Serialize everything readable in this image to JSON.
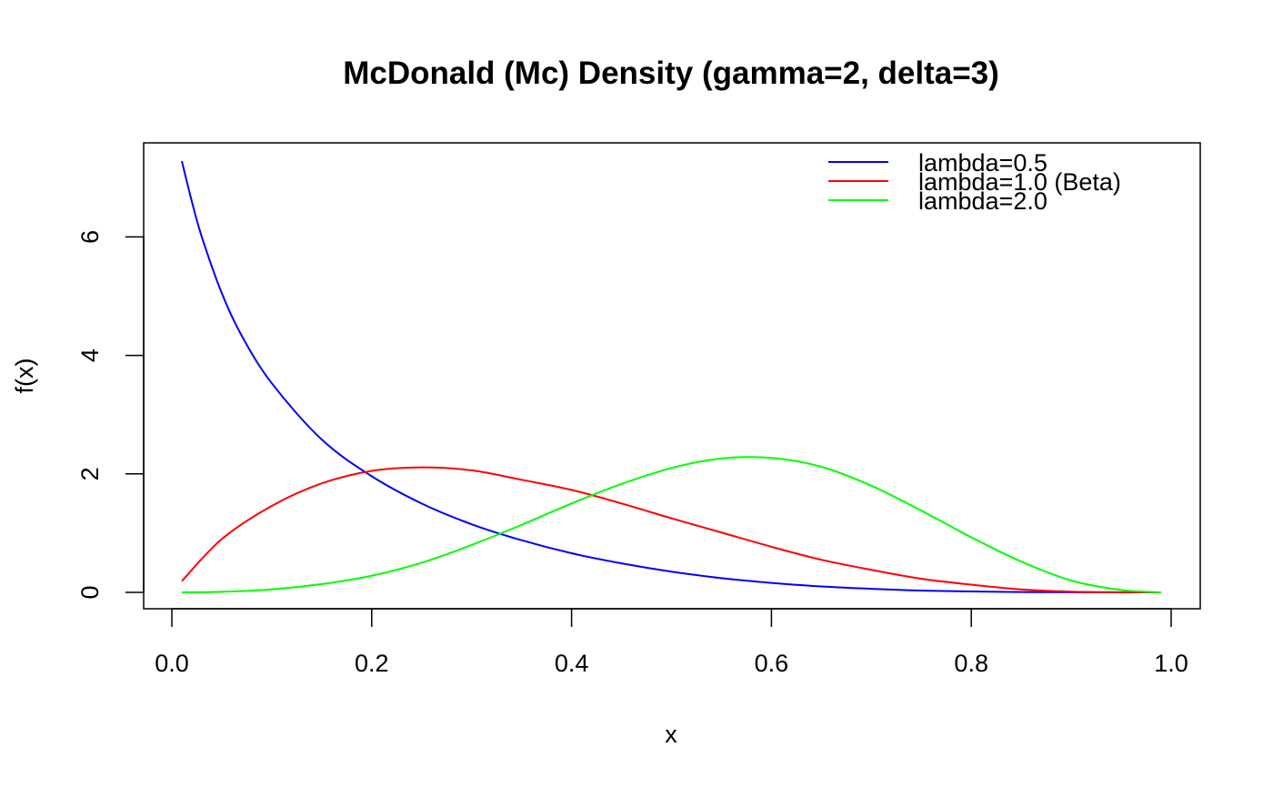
{
  "chart_data": {
    "type": "line",
    "title": "McDonald (Mc) Density (gamma=2, delta=3)",
    "xlabel": "x",
    "ylabel": "f(x)",
    "xlim": [
      0.0,
      1.0
    ],
    "ylim": [
      0,
      7.3
    ],
    "xticks": [
      0.0,
      0.2,
      0.4,
      0.6,
      0.8,
      1.0
    ],
    "xtick_labels": [
      "0.0",
      "0.2",
      "0.4",
      "0.6",
      "0.8",
      "1.0"
    ],
    "yticks": [
      0,
      2,
      4,
      6
    ],
    "ytick_labels": [
      "0",
      "2",
      "4",
      "6"
    ],
    "grid": false,
    "legend_position": "top-right",
    "series": [
      {
        "name": "lambda=0.5",
        "color": "#0000ff",
        "x": [
          0.01,
          0.02,
          0.03,
          0.05,
          0.07,
          0.1,
          0.15,
          0.2,
          0.25,
          0.3,
          0.35,
          0.4,
          0.45,
          0.5,
          0.55,
          0.6,
          0.65,
          0.7,
          0.75,
          0.8,
          0.85,
          0.9,
          0.95,
          0.99
        ],
        "y": [
          7.28,
          6.6,
          6.0,
          5.05,
          4.33,
          3.53,
          2.58,
          1.96,
          1.5,
          1.15,
          0.88,
          0.66,
          0.49,
          0.35,
          0.24,
          0.16,
          0.1,
          0.06,
          0.03,
          0.015,
          0.006,
          0.002,
          0.0004,
          0.0
        ]
      },
      {
        "name": "lambda=1.0 (Beta)",
        "color": "#ff0000",
        "x": [
          0.01,
          0.05,
          0.1,
          0.15,
          0.2,
          0.25,
          0.3,
          0.35,
          0.4,
          0.45,
          0.5,
          0.55,
          0.6,
          0.65,
          0.7,
          0.75,
          0.8,
          0.85,
          0.9,
          0.95,
          0.99
        ],
        "y": [
          0.19,
          0.9,
          1.46,
          1.84,
          2.05,
          2.11,
          2.06,
          1.9,
          1.73,
          1.5,
          1.25,
          1.01,
          0.77,
          0.55,
          0.38,
          0.23,
          0.13,
          0.05,
          0.012,
          0.002,
          0.0
        ]
      },
      {
        "name": "lambda=2.0",
        "color": "#00ff00",
        "x": [
          0.01,
          0.05,
          0.1,
          0.15,
          0.2,
          0.25,
          0.3,
          0.35,
          0.4,
          0.45,
          0.5,
          0.55,
          0.6,
          0.65,
          0.7,
          0.75,
          0.8,
          0.85,
          0.9,
          0.95,
          0.99
        ],
        "y": [
          0.0,
          0.01,
          0.05,
          0.14,
          0.28,
          0.5,
          0.8,
          1.14,
          1.5,
          1.83,
          2.1,
          2.26,
          2.27,
          2.12,
          1.8,
          1.38,
          0.93,
          0.52,
          0.2,
          0.04,
          0.0
        ]
      }
    ]
  }
}
